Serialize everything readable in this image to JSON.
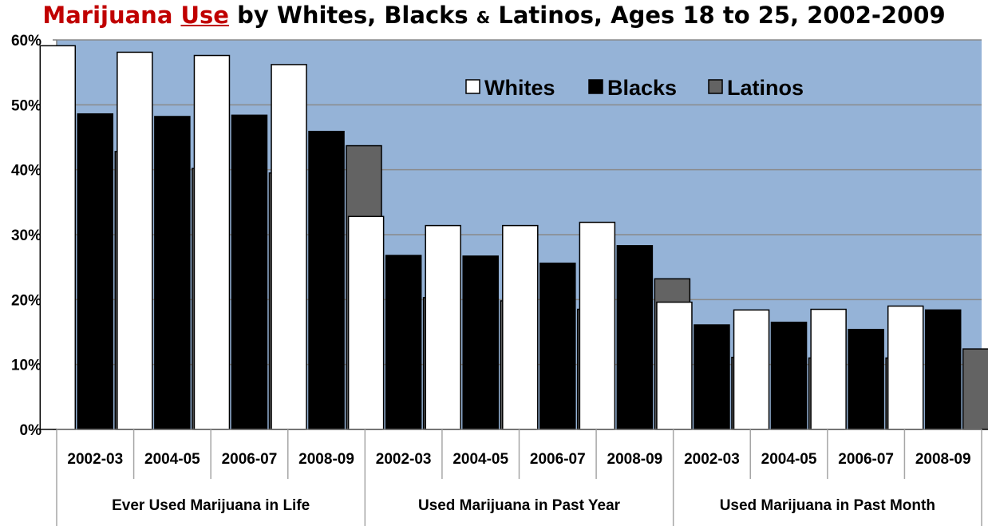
{
  "title": {
    "part1": "Marijuana",
    "part2": "Use",
    "part3": "by Whites, Blacks",
    "part4": "&",
    "part5": "Latinos, Ages 18 to 25, 2002-2009"
  },
  "colors": {
    "plot_bg": "#95b3d7",
    "whites": "#ffffff",
    "blacks": "#000000",
    "latinos": "#636363",
    "title_red": "#c00000"
  },
  "chart_data": {
    "type": "bar",
    "title": "Marijuana Use by Whites, Blacks & Latinos, Ages 18 to 25, 2002-2009",
    "ylim": [
      0,
      60
    ],
    "y_ticks": [
      "0%",
      "10%",
      "20%",
      "30%",
      "40%",
      "50%",
      "60%"
    ],
    "legend_position": "top-right",
    "grid": true,
    "groups": [
      "Ever Used Marijuana in Life",
      "Used Marijuana in Past Year",
      "Used Marijuana in Past Month"
    ],
    "categories": [
      "2002-03",
      "2004-05",
      "2006-07",
      "2008-09",
      "2002-03",
      "2004-05",
      "2006-07",
      "2008-09",
      "2002-03",
      "2004-05",
      "2006-07",
      "2008-09"
    ],
    "series": [
      {
        "name": "Whites",
        "values": [
          59.1,
          58.1,
          57.6,
          56.2,
          32.8,
          31.4,
          31.4,
          31.9,
          19.6,
          18.4,
          18.5,
          19.0
        ]
      },
      {
        "name": "Blacks",
        "values": [
          48.6,
          48.2,
          48.4,
          45.9,
          26.8,
          26.7,
          25.6,
          28.3,
          16.1,
          16.5,
          15.4,
          18.4
        ]
      },
      {
        "name": "Latinos",
        "values": [
          42.8,
          40.2,
          39.5,
          43.7,
          20.3,
          19.8,
          18.5,
          23.2,
          11.1,
          11.0,
          11.0,
          12.4
        ]
      }
    ]
  }
}
